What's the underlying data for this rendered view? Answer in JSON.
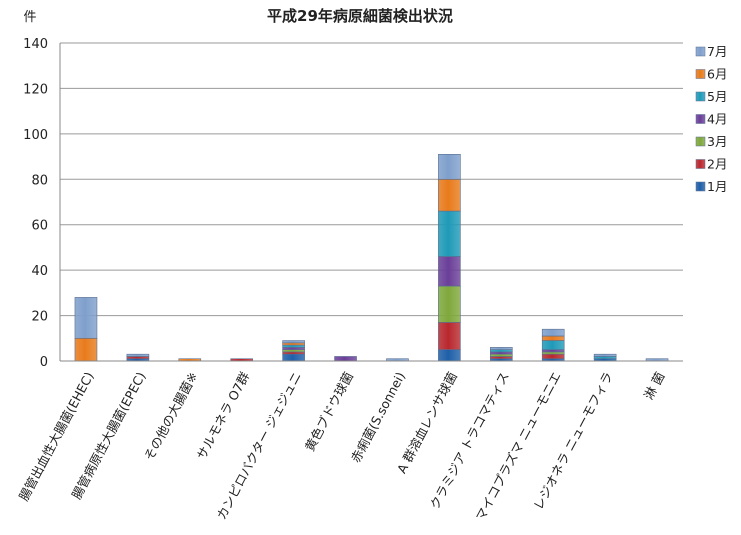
{
  "chart_data": {
    "type": "bar",
    "stacked": true,
    "title": "平成29年病原細菌検出状況",
    "ylabel": "件",
    "xlabel": "",
    "ylim": [
      0,
      140
    ],
    "yticks": [
      0,
      20,
      40,
      60,
      80,
      100,
      120,
      140
    ],
    "grid": true,
    "legend_position": "right",
    "categories": [
      "腸管出血性大腸菌(EHEC)",
      "腸管病原性大腸菌(EPEC)",
      "その他の大腸菌※",
      "サルモネラ O7群",
      "カンピロバクター ジェジュニ",
      "黄色ブドウ球菌",
      "赤痢菌(S.sonnei)",
      "A 群溶血レンサ球菌",
      "クラミジア トラコマティス",
      "マイコプラズマ ニューモニエ",
      "レジオネラ ニューモフィラ",
      "淋 菌"
    ],
    "series": [
      {
        "name": "1月",
        "color": "#1f5fa8",
        "values": [
          0,
          1,
          0,
          0,
          3,
          0,
          0,
          5,
          1,
          1,
          1,
          0
        ]
      },
      {
        "name": "2月",
        "color": "#b8282e",
        "values": [
          0,
          1,
          0,
          1,
          1,
          0,
          0,
          12,
          1,
          2,
          0,
          0
        ]
      },
      {
        "name": "3月",
        "color": "#7fa83c",
        "values": [
          0,
          0,
          0,
          0,
          1,
          0,
          0,
          16,
          1,
          1,
          0,
          0
        ]
      },
      {
        "name": "4月",
        "color": "#6a3f99",
        "values": [
          0,
          0,
          0,
          0,
          1,
          2,
          0,
          13,
          1,
          1,
          0,
          0
        ]
      },
      {
        "name": "5月",
        "color": "#1f9ab8",
        "values": [
          0,
          0,
          0,
          0,
          1,
          0,
          0,
          20,
          1,
          4,
          1,
          0
        ]
      },
      {
        "name": "6月",
        "color": "#e87b1c",
        "values": [
          10,
          0,
          1,
          0,
          1,
          0,
          0,
          14,
          0,
          2,
          0,
          0
        ]
      },
      {
        "name": "7月",
        "color": "#7f9fcc",
        "values": [
          18,
          1,
          0,
          0,
          1,
          0,
          1,
          11,
          1,
          3,
          1,
          1
        ]
      }
    ]
  }
}
